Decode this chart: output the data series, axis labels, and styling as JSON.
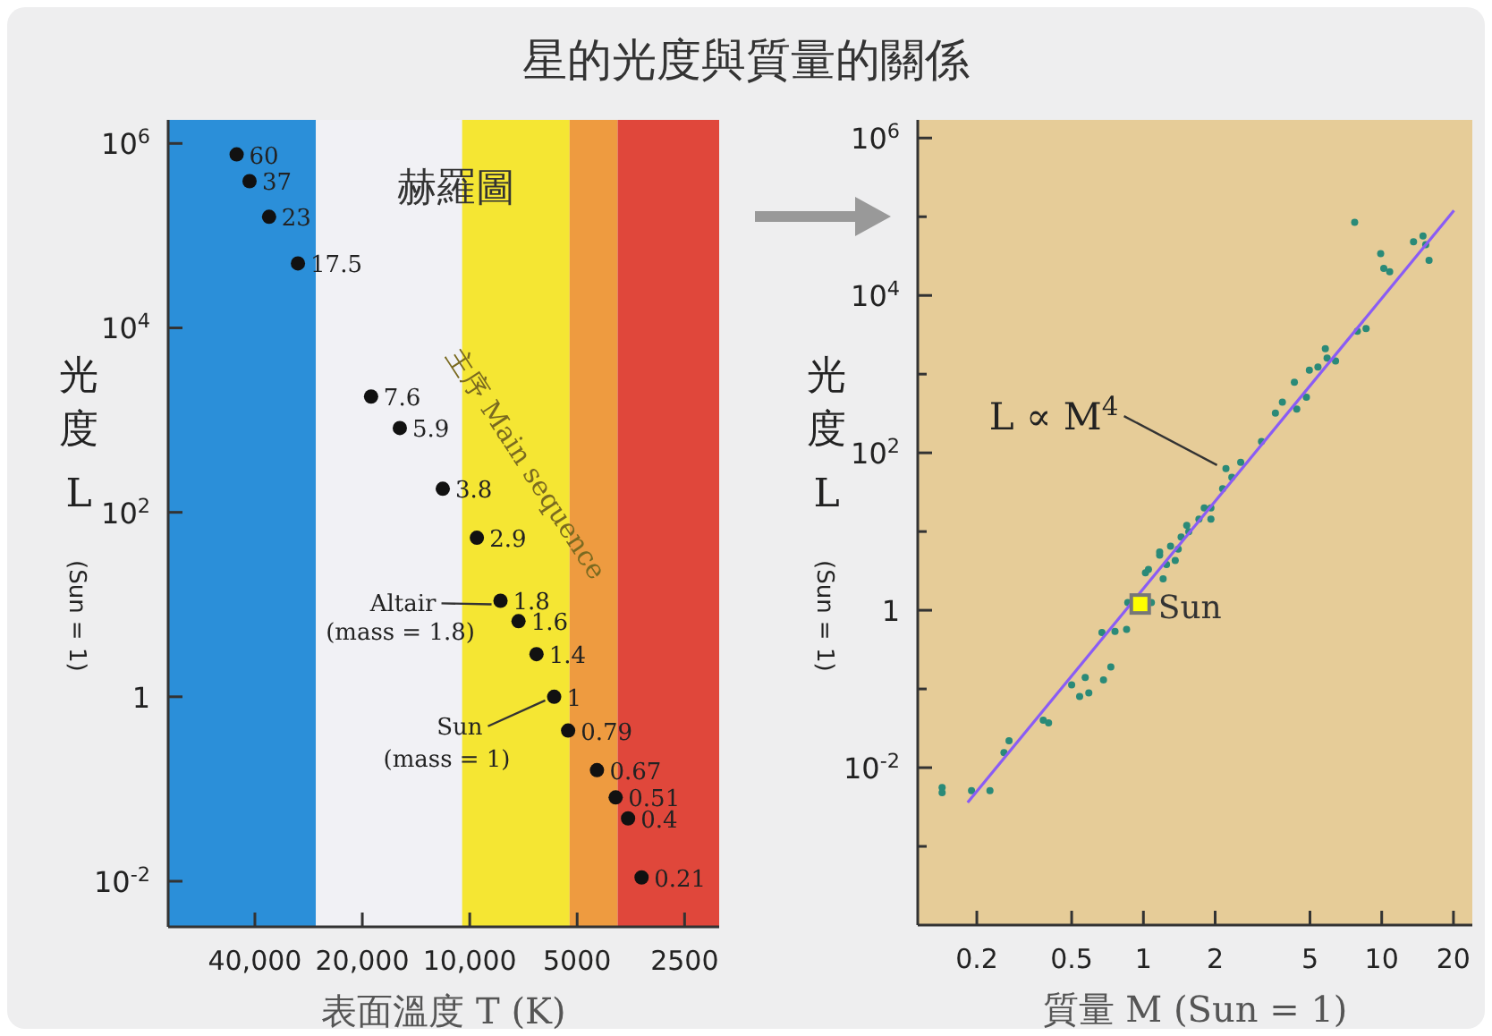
{
  "chart_data": [
    {
      "type": "scatter",
      "title": "星的光度與質量的關係",
      "xlabel": "表面溫度 T (K)",
      "ylabel": "光度 L (Sun = 1)",
      "log": "xy",
      "xlim": [
        70000,
        2000
      ],
      "ylim": [
        0.0032,
        1800000
      ],
      "xticks": [
        {
          "value": 40000,
          "label": "40,000"
        },
        {
          "value": 20000,
          "label": "20,000"
        },
        {
          "value": 10000,
          "label": "10,000"
        },
        5000,
        2500
      ],
      "yticks": [
        {
          "value": 1000000,
          "label": "10$^{6}$"
        },
        {
          "value": 10000,
          "label": "10$^{4}$"
        },
        {
          "value": 100,
          "label": "10$^{2}$"
        },
        1,
        {
          "value": 0.01,
          "label": "10$^{-2}$"
        }
      ],
      "x": [
        45000,
        41400,
        36500,
        30300,
        18900,
        15700,
        11900,
        9550,
        8200,
        7300,
        6500,
        5800,
        5300,
        4400,
        3900,
        3600,
        3300
      ],
      "values": [
        760000,
        390000,
        160000,
        50000,
        1800,
        820,
        180,
        53,
        11,
        6.6,
        2.9,
        1,
        0.43,
        0.16,
        0.081,
        0.048,
        0.011
      ],
      "color": "#111111",
      "marker": "circle",
      "grid": false,
      "bands": [
        {
          "axis": "x",
          "from": 70000,
          "to": 27000,
          "color": "#2b8fd9"
        },
        {
          "axis": "x",
          "from": 27000,
          "to": 10500,
          "color": "#f1f1f5"
        },
        {
          "axis": "x",
          "from": 10500,
          "to": 5250,
          "color": "#f5e633"
        },
        {
          "axis": "x",
          "from": 5250,
          "to": 3850,
          "color": "#ee9b40"
        },
        {
          "axis": "x",
          "from": 3850,
          "to": 2000,
          "color": "#e0473b"
        }
      ],
      "annotations": [
        "赫羅圖",
        "主序 Main sequence",
        {
          "text": "Altair\n(mass = 1.8)",
          "x": 8200,
          "y": 11
        },
        {
          "text": "Sun\n(mass = 1)",
          "x": 5800,
          "y": 1
        },
        {
          "text": "60",
          "x": 45000,
          "y": 760000
        },
        {
          "text": "37",
          "x": 41400,
          "y": 390000
        },
        {
          "text": "23",
          "x": 36500,
          "y": 160000
        },
        {
          "text": "17.5",
          "x": 30300,
          "y": 50000
        },
        {
          "text": "7.6",
          "x": 18900,
          "y": 1800
        },
        {
          "text": "5.9",
          "x": 15700,
          "y": 820
        },
        {
          "text": "3.8",
          "x": 11900,
          "y": 180
        },
        {
          "text": "2.9",
          "x": 9550,
          "y": 53
        },
        {
          "text": "1.8",
          "x": 8200,
          "y": 11
        },
        {
          "text": "1.6",
          "x": 7300,
          "y": 6.6
        },
        {
          "text": "1.4",
          "x": 6500,
          "y": 2.9
        },
        {
          "text": "1",
          "x": 5800,
          "y": 1
        },
        {
          "text": "0.79",
          "x": 5300,
          "y": 0.43
        },
        {
          "text": "0.67",
          "x": 4400,
          "y": 0.16
        },
        {
          "text": "0.51",
          "x": 3900,
          "y": 0.081
        },
        {
          "text": "0.4",
          "x": 3600,
          "y": 0.048
        },
        {
          "text": "0.21",
          "x": 3300,
          "y": 0.011
        }
      ]
    },
    {
      "type": "scatter",
      "xlabel": "質量 M (Sun = 1)",
      "ylabel": "光度 L (Sun = 1)",
      "log": "xy",
      "xlim": [
        0.113,
        24
      ],
      "ylim": [
        0.0001,
        1700000
      ],
      "xticks": [
        0.2,
        0.5,
        1,
        2,
        5,
        10,
        20
      ],
      "yticks": [
        {
          "value": 1000000,
          "label": "10$^{6}$"
        },
        {
          "value": 100000,
          "label": null
        },
        {
          "value": 10000,
          "label": "10$^{4}$"
        },
        {
          "value": 1000,
          "label": null
        },
        {
          "value": 100,
          "label": "10$^{2}$"
        },
        {
          "value": 10,
          "label": null
        },
        1,
        {
          "value": 0.1,
          "label": null
        },
        {
          "value": 0.01,
          "label": "10$^{-2}$"
        },
        {
          "value": 0.001,
          "label": null
        }
      ],
      "grid": false,
      "marker": "circle",
      "series": [
        {
          "color": "#2a8a78",
          "x": [
            0.143,
            0.143,
            0.19,
            0.227,
            0.26,
            0.273,
            0.38,
            0.4,
            0.5,
            0.54,
            0.59,
            0.57,
            0.68,
            0.73,
            0.67,
            0.76,
            0.85,
            0.86,
            1.08,
            1.17,
            1.05,
            1.02,
            1.17,
            1.21,
            1.36,
            1.44,
            1.52,
            1.71,
            1.92,
            1.92,
            2.15,
            2.35,
            2.56,
            2.22,
            3.13,
            3.58,
            3.83,
            4.3,
            4.4,
            4.83,
            4.97,
            5.4,
            5.9,
            5.8,
            6.4,
            7.9,
            8.6,
            7.7,
            9.9,
            10.2,
            10.8,
            13.6,
            14.9,
            15.3,
            15.8,
            1.3,
            1.55,
            1.8,
            1.25,
            1.4
          ],
          "values": [
            0.0056,
            0.0048,
            0.0051,
            0.0051,
            0.0155,
            0.022,
            0.04,
            0.037,
            0.113,
            0.08,
            0.089,
            0.14,
            0.13,
            0.19,
            0.52,
            0.54,
            0.57,
            1.25,
            1.25,
            5.0,
            3.3,
            3.0,
            5.5,
            2.5,
            4.3,
            8.5,
            12,
            14.4,
            20,
            14.4,
            35,
            49,
            76,
            63,
            139,
            320,
            440,
            790,
            360,
            510,
            1120,
            1230,
            1600,
            2100,
            1470,
            3500,
            3800,
            85000,
            34000,
            22000,
            20000,
            48000,
            57000,
            44000,
            28000,
            6.5,
            10,
            20,
            3.8,
            6
          ]
        },
        {
          "type": "line",
          "color": "#8a5cf5",
          "marker": "none",
          "line_style": "solid",
          "x": [
            0.183,
            20.1
          ],
          "values": [
            0.0036,
            120000
          ]
        },
        {
          "name": "Sun",
          "color": "#ffff00",
          "marker": "square",
          "x": [
            0.97
          ],
          "values": [
            1.2
          ]
        }
      ],
      "annotations": [
        {
          "text": "L ∝ M$^{4}$",
          "x": 2.22,
          "y": 63
        }
      ]
    }
  ]
}
